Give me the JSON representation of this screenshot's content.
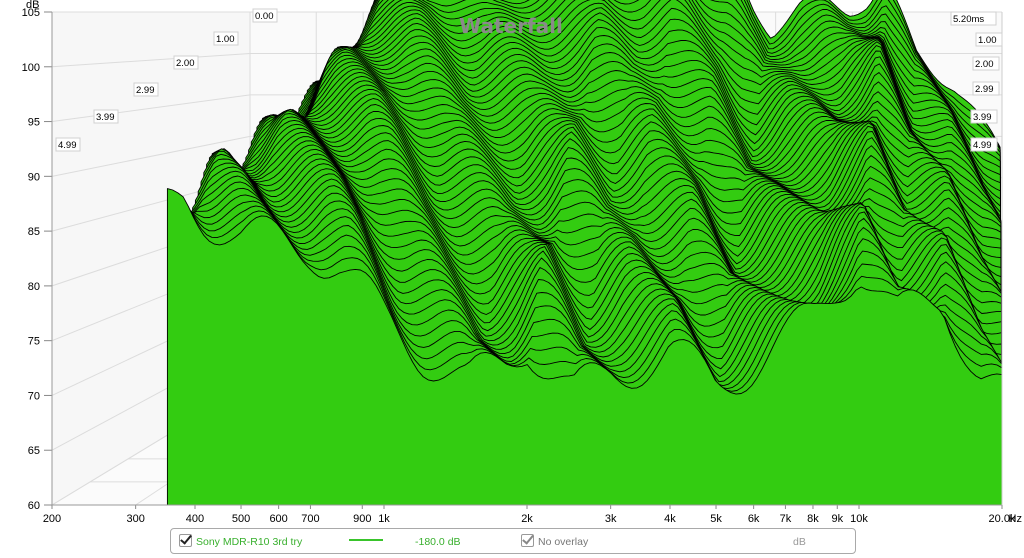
{
  "chart_data": {
    "type": "area",
    "title": "Waterfall",
    "ylabel": "dB",
    "x_unit_label": "Hz",
    "x_scale": "log",
    "xlim": [
      200,
      20000
    ],
    "ylim": [
      60,
      105
    ],
    "x_ticks": [
      {
        "v": 200,
        "label": "200"
      },
      {
        "v": 300,
        "label": "300"
      },
      {
        "v": 400,
        "label": "400"
      },
      {
        "v": 500,
        "label": "500"
      },
      {
        "v": 600,
        "label": "600"
      },
      {
        "v": 700,
        "label": "700"
      },
      {
        "v": 900,
        "label": "900"
      },
      {
        "v": 1000,
        "label": "1k"
      },
      {
        "v": 2000,
        "label": "2k"
      },
      {
        "v": 3000,
        "label": "3k"
      },
      {
        "v": 4000,
        "label": "4k"
      },
      {
        "v": 5000,
        "label": "5k"
      },
      {
        "v": 6000,
        "label": "6k"
      },
      {
        "v": 7000,
        "label": "7k"
      },
      {
        "v": 8000,
        "label": "8k"
      },
      {
        "v": 9000,
        "label": "9k"
      },
      {
        "v": 10000,
        "label": "10k"
      },
      {
        "v": 20000,
        "label": "20.0k"
      }
    ],
    "y_ticks": [
      60,
      65,
      70,
      75,
      80,
      85,
      90,
      95,
      100,
      105
    ],
    "time_labels_left": [
      "0.00",
      "1.00",
      "2.00",
      "2.99",
      "3.99",
      "4.99"
    ],
    "time_labels_right": [
      "5.20ms",
      "1.00",
      "2.00",
      "2.99",
      "3.99",
      "4.99"
    ],
    "grid": true,
    "series_color": "#33cc11",
    "slice_count": 60,
    "front_slice": [
      [
        350,
        87
      ],
      [
        380,
        88
      ],
      [
        420,
        86.5
      ],
      [
        500,
        84.5
      ],
      [
        600,
        84
      ],
      [
        700,
        83.5
      ],
      [
        800,
        82
      ],
      [
        900,
        79.5
      ],
      [
        1000,
        77
      ],
      [
        1200,
        74
      ],
      [
        1500,
        71
      ],
      [
        1800,
        73
      ],
      [
        2000,
        75
      ],
      [
        2500,
        70
      ],
      [
        3000,
        72
      ],
      [
        4000,
        74
      ],
      [
        5000,
        71
      ],
      [
        6000,
        73
      ],
      [
        7000,
        75
      ],
      [
        8000,
        77
      ],
      [
        9000,
        80
      ],
      [
        10000,
        82
      ],
      [
        12000,
        77
      ],
      [
        15000,
        79
      ],
      [
        18000,
        72
      ],
      [
        20000,
        70
      ]
    ],
    "back_slice": [
      [
        350,
        88.5
      ],
      [
        380,
        89
      ],
      [
        400,
        90
      ],
      [
        450,
        95
      ],
      [
        500,
        97
      ],
      [
        600,
        98
      ],
      [
        700,
        98.5
      ],
      [
        800,
        98
      ],
      [
        900,
        97.5
      ],
      [
        1000,
        97.5
      ],
      [
        1200,
        99
      ],
      [
        1500,
        100.5
      ],
      [
        1800,
        101
      ],
      [
        2000,
        101.5
      ],
      [
        2500,
        102
      ],
      [
        3000,
        102.5
      ],
      [
        3500,
        100
      ],
      [
        4000,
        98
      ],
      [
        4500,
        95
      ],
      [
        5000,
        93
      ],
      [
        5500,
        94
      ],
      [
        6000,
        95
      ],
      [
        7000,
        95.5
      ],
      [
        8000,
        95
      ],
      [
        9000,
        95.5
      ],
      [
        10000,
        97
      ],
      [
        12000,
        91
      ],
      [
        15000,
        88
      ],
      [
        18000,
        84
      ],
      [
        20000,
        82
      ]
    ]
  },
  "legend": {
    "series_name": "Sony MDR-R10 3rd try",
    "value": "-180.0 dB",
    "overlay": "No overlay",
    "unit": "dB"
  }
}
